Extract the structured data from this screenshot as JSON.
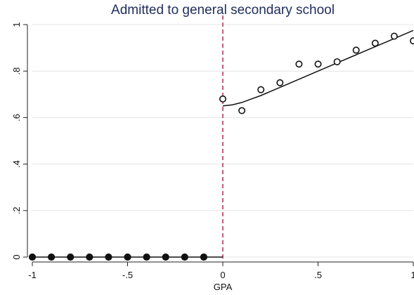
{
  "chart_data": {
    "type": "scatter",
    "title": "Admitted to general secondary school",
    "xlabel": "GPA",
    "ylabel": "",
    "xlim": [
      -1,
      1
    ],
    "ylim": [
      0,
      1
    ],
    "x_ticks": [
      -1,
      -0.5,
      0,
      0.5,
      1
    ],
    "x_tick_labels": [
      "-1",
      "-.5",
      "0",
      ".5",
      "1"
    ],
    "y_ticks": [
      0,
      0.2,
      0.4,
      0.6,
      0.8,
      1
    ],
    "y_tick_labels": [
      "0",
      ".2",
      ".4",
      ".6",
      ".8",
      "1"
    ],
    "grid": true,
    "cutoff": {
      "x": 0,
      "color": "#b03a5a",
      "style": "dashed"
    },
    "series": [
      {
        "marker": "filled-circle",
        "x": [
          -1,
          -0.9,
          -0.8,
          -0.7,
          -0.6,
          -0.5,
          -0.4,
          -0.3,
          -0.2,
          -0.1
        ],
        "y": [
          0,
          0,
          0,
          0,
          0,
          0,
          0,
          0,
          0,
          0
        ]
      },
      {
        "marker": "hollow-circle",
        "x": [
          0,
          0.1,
          0.2,
          0.3,
          0.4,
          0.5,
          0.6,
          0.7,
          0.8,
          0.9,
          1.0
        ],
        "y": [
          0.68,
          0.63,
          0.72,
          0.75,
          0.83,
          0.83,
          0.84,
          0.89,
          0.92,
          0.95,
          0.93
        ]
      }
    ],
    "fit_lines": [
      {
        "x": [
          -1,
          -0.8,
          -0.6,
          -0.4,
          -0.2,
          0
        ],
        "y": [
          0,
          0,
          0,
          0,
          0,
          0
        ]
      },
      {
        "x": [
          0,
          0.05,
          0.1,
          0.15,
          0.2,
          0.3,
          0.4,
          0.5,
          0.6,
          0.7,
          0.8,
          0.9,
          1.0
        ],
        "y": [
          0.65,
          0.655,
          0.665,
          0.68,
          0.695,
          0.73,
          0.765,
          0.8,
          0.835,
          0.87,
          0.905,
          0.94,
          0.975
        ]
      }
    ],
    "colors": {
      "marker": "#111111",
      "fit": "#111111",
      "grid": "#e4e4e4",
      "axis": "#222222"
    }
  }
}
